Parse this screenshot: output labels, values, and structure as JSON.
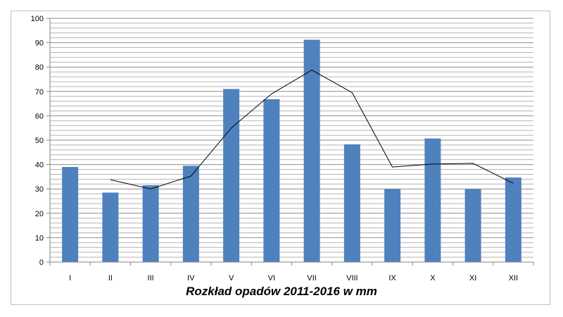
{
  "chart_data": {
    "type": "bar",
    "title": "Rozkład opadów 2011-2016 w mm",
    "xlabel": "",
    "ylabel": "",
    "categories": [
      "I",
      "II",
      "III",
      "IV",
      "V",
      "VI",
      "VII",
      "VIII",
      "IX",
      "X",
      "XI",
      "XII"
    ],
    "ylim": [
      0,
      100
    ],
    "y_major_ticks": [
      0,
      10,
      20,
      30,
      40,
      50,
      60,
      70,
      80,
      90,
      100
    ],
    "y_minor_step": 2,
    "grid": true,
    "legend": "none",
    "series": [
      {
        "type": "bar",
        "values": [
          39.0,
          28.5,
          31.5,
          39.5,
          71.0,
          66.8,
          91.2,
          48.3,
          30.0,
          50.7,
          30.0,
          34.7
        ],
        "color": "#4f81bd"
      },
      {
        "type": "line",
        "values": [
          null,
          33.8,
          30.0,
          35.3,
          55.0,
          69.0,
          78.8,
          69.5,
          39.0,
          40.2,
          40.5,
          32.3
        ],
        "color": "#000000"
      }
    ]
  }
}
